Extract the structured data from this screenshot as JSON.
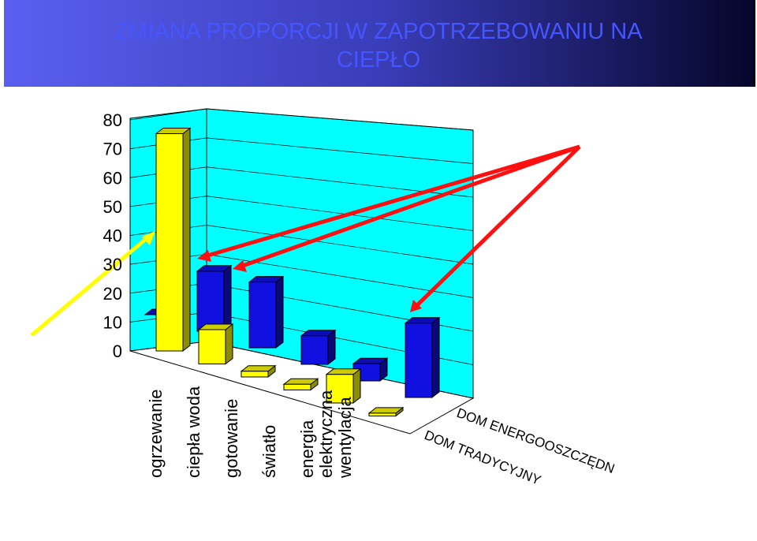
{
  "chart_data": {
    "type": "bar3d",
    "title": "ZMIANA PROPORCJI W ZAPOTRZEBOWANIU NA CIEPŁO",
    "categories": [
      "ogrzewanie",
      "ciepła woda",
      "gotowanie",
      "światło",
      "energia elektryczna",
      "wentylacja"
    ],
    "series": [
      {
        "name": "DOM ENERGOOSZCZĘDN",
        "color": "#1010e0",
        "values": [
          0,
          21,
          23,
          10,
          6,
          26
        ]
      },
      {
        "name": "DOM TRADYCYJNY",
        "color": "#ffff00",
        "values": [
          76,
          12,
          2,
          2,
          10,
          1
        ]
      }
    ],
    "ylim": [
      0,
      80
    ],
    "yticks": [
      0,
      10,
      20,
      30,
      40,
      50,
      60,
      70,
      80
    ],
    "grid": true
  }
}
